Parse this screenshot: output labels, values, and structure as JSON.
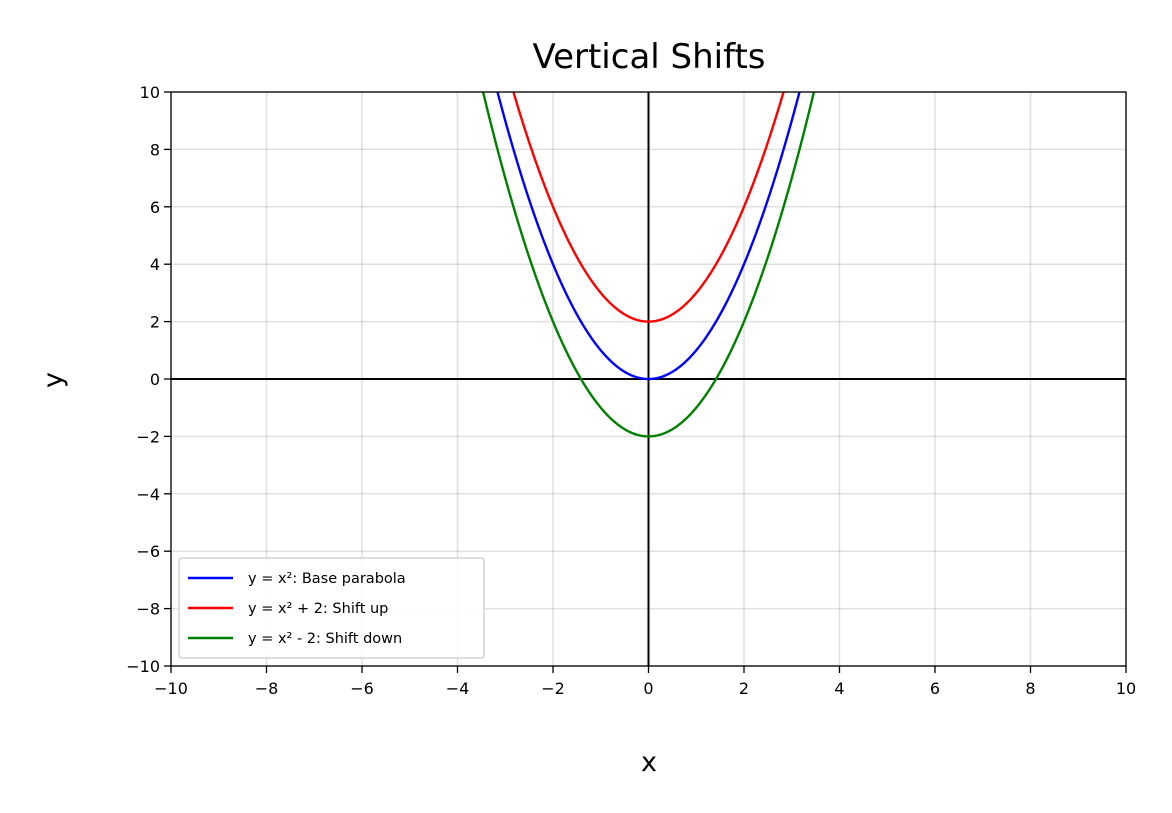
{
  "chart_data": {
    "type": "line",
    "title": "Vertical Shifts",
    "xlabel": "x",
    "ylabel": "y",
    "xlim": [
      -10,
      10
    ],
    "ylim": [
      -10,
      10
    ],
    "x_ticks": [
      -10,
      -8,
      -6,
      -4,
      -2,
      0,
      2,
      4,
      6,
      8,
      10
    ],
    "y_ticks": [
      -10,
      -8,
      -6,
      -4,
      -2,
      0,
      2,
      4,
      6,
      8,
      10
    ],
    "x_tick_labels": [
      "−10",
      "−8",
      "−6",
      "−4",
      "−2",
      "0",
      "2",
      "4",
      "6",
      "8",
      "10"
    ],
    "y_tick_labels": [
      "−10",
      "−8",
      "−6",
      "−4",
      "−2",
      "0",
      "2",
      "4",
      "6",
      "8",
      "10"
    ],
    "grid": true,
    "legend_position": "lower-left",
    "series": [
      {
        "name": "y = x²: Base parabola",
        "color": "#0000ff",
        "shift": 0,
        "x": [
          -3.16,
          -3,
          -2.5,
          -2,
          -1.5,
          -1,
          -0.5,
          0,
          0.5,
          1,
          1.5,
          2,
          2.5,
          3,
          3.16
        ],
        "values": [
          10,
          9,
          6.25,
          4,
          2.25,
          1,
          0.25,
          0,
          0.25,
          1,
          2.25,
          4,
          6.25,
          9,
          10
        ]
      },
      {
        "name": "y = x² + 2: Shift up",
        "color": "#ff0000",
        "shift": 2,
        "x": [
          -2.83,
          -2.5,
          -2,
          -1.5,
          -1,
          -0.5,
          0,
          0.5,
          1,
          1.5,
          2,
          2.5,
          2.83
        ],
        "values": [
          10,
          8.25,
          6,
          4.25,
          3,
          2.25,
          2,
          2.25,
          3,
          4.25,
          6,
          8.25,
          10
        ]
      },
      {
        "name": "y = x² - 2: Shift down",
        "color": "#008000",
        "shift": -2,
        "x": [
          -3.46,
          -3,
          -2.5,
          -2,
          -1.5,
          -1,
          -0.5,
          0,
          0.5,
          1,
          1.5,
          2,
          2.5,
          3,
          3.46
        ],
        "values": [
          10,
          7,
          4.25,
          2,
          0.25,
          -1,
          -1.75,
          -2,
          -1.75,
          -1,
          0.25,
          2,
          4.25,
          7,
          10
        ]
      }
    ]
  }
}
